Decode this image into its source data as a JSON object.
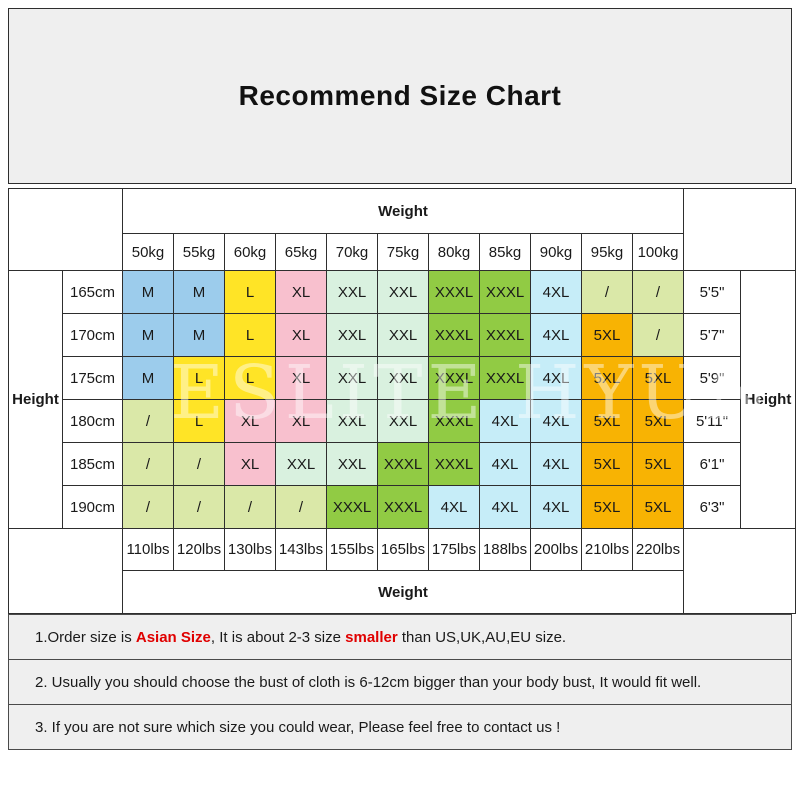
{
  "title": "Recommend Size Chart",
  "watermark": "ESLITE HYUN",
  "table": {
    "weight_label_top": "Weight",
    "weight_label_bottom": "Weight",
    "height_label_left": "Height",
    "height_label_right": "Height",
    "weights_kg": [
      "50kg",
      "55kg",
      "60kg",
      "65kg",
      "70kg",
      "75kg",
      "80kg",
      "85kg",
      "90kg",
      "95kg",
      "100kg"
    ],
    "weights_lbs": [
      "110lbs",
      "120lbs",
      "130lbs",
      "143lbs",
      "155lbs",
      "165lbs",
      "175lbs",
      "188lbs",
      "200lbs",
      "210lbs",
      "220lbs"
    ],
    "rows": [
      {
        "cm": "165cm",
        "ft": "5'5\"",
        "sizes": [
          "M",
          "M",
          "L",
          "XL",
          "XXL",
          "XXL",
          "XXXL",
          "XXXL",
          "4XL",
          "/",
          "/"
        ]
      },
      {
        "cm": "170cm",
        "ft": "5'7\"",
        "sizes": [
          "M",
          "M",
          "L",
          "XL",
          "XXL",
          "XXL",
          "XXXL",
          "XXXL",
          "4XL",
          "5XL",
          "/"
        ]
      },
      {
        "cm": "175cm",
        "ft": "5'9\"",
        "sizes": [
          "M",
          "L",
          "L",
          "XL",
          "XXL",
          "XXL",
          "XXXL",
          "XXXL",
          "4XL",
          "5XL",
          "5XL"
        ]
      },
      {
        "cm": "180cm",
        "ft": "5'11\"",
        "sizes": [
          "/",
          "L",
          "XL",
          "XL",
          "XXL",
          "XXL",
          "XXXL",
          "4XL",
          "4XL",
          "5XL",
          "5XL"
        ]
      },
      {
        "cm": "185cm",
        "ft": "6'1\"",
        "sizes": [
          "/",
          "/",
          "XL",
          "XXL",
          "XXL",
          "XXXL",
          "XXXL",
          "4XL",
          "4XL",
          "5XL",
          "5XL"
        ]
      },
      {
        "cm": "190cm",
        "ft": "6'3\"",
        "sizes": [
          "/",
          "/",
          "/",
          "/",
          "XXXL",
          "XXXL",
          "4XL",
          "4XL",
          "4XL",
          "5XL",
          "5XL"
        ]
      }
    ],
    "size_colors": {
      "M": "#9CCCEC",
      "L": "#FFE426",
      "XL": "#F8C0CE",
      "XXL": "#D9F1DF",
      "XXXL": "#91CB44",
      "4XL": "#C6EDF8",
      "5XL": "#F8B303",
      "/": "#DAE8A8"
    }
  },
  "notes": [
    {
      "parts": [
        {
          "text": "1.Order size is ",
          "style": "normal"
        },
        {
          "text": "Asian Size",
          "style": "red"
        },
        {
          "text": ", It is about 2-3 size ",
          "style": "normal"
        },
        {
          "text": "smaller",
          "style": "red"
        },
        {
          "text": " than US,UK,AU,EU size.",
          "style": "normal"
        }
      ]
    },
    {
      "parts": [
        {
          "text": "2. Usually you should choose the bust of cloth is 6-12cm bigger than your body bust, It would fit well.",
          "style": "normal"
        }
      ]
    },
    {
      "parts": [
        {
          "text": "3. If you are not sure which size you could wear, Please feel free to contact us !",
          "style": "normal"
        }
      ]
    }
  ],
  "colors": {
    "panel_bg": "#EFEFEF",
    "grid_border": "#2E2E2E",
    "note_border": "#4A4A4A",
    "accent_red": "#E00000",
    "text": "#1A1A1A"
  }
}
